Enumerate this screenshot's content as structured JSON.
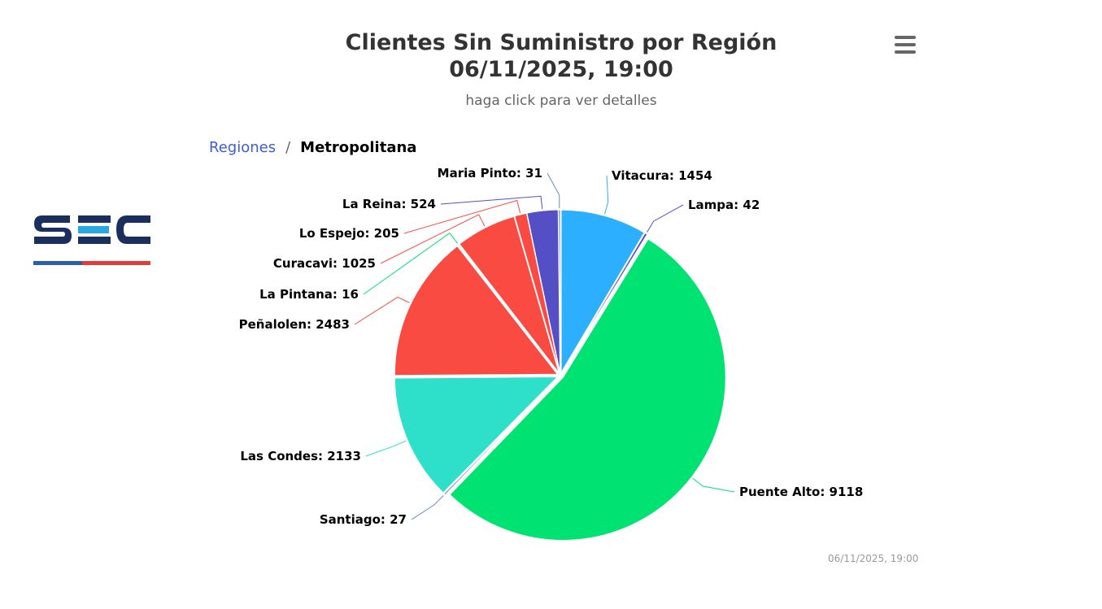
{
  "header": {
    "title_line1": "Clientes Sin Suministro por Región",
    "title_line2": "06/11/2025, 19:00",
    "subtitle": "haga click para ver detalles"
  },
  "breadcrumb": {
    "parent": "Regiones",
    "separator": "/",
    "current": "Metropolitana"
  },
  "menu": {
    "icon": "hamburger-menu-icon"
  },
  "logo": {
    "text": "SEC",
    "colors": {
      "dark": "#1b2f5e",
      "accent": "#29a8e0",
      "red": "#e03c3c",
      "blue": "#2c5fa8"
    }
  },
  "credits": "06/11/2025, 19:00",
  "chart_data": {
    "type": "pie",
    "title": "Clientes Sin Suministro por Región 06/11/2025, 19:00",
    "subtitle": "haga click para ver detalles",
    "slices": [
      {
        "name": "Vitacura",
        "value": 1454,
        "color": "#2caffe"
      },
      {
        "name": "Lampa",
        "value": 42,
        "color": "#544fc5"
      },
      {
        "name": "Puente Alto",
        "value": 9118,
        "color": "#00e272"
      },
      {
        "name": "Santiago",
        "value": 27,
        "color": "#6b8abc"
      },
      {
        "name": "Las Condes",
        "value": 2133,
        "color": "#2ee0ca"
      },
      {
        "name": "Peñalolen",
        "value": 2483,
        "color": "#fa4b42"
      },
      {
        "name": "La Pintana",
        "value": 16,
        "color": "#00e272"
      },
      {
        "name": "Curacavi",
        "value": 1025,
        "color": "#fa4b42"
      },
      {
        "name": "Lo Espejo",
        "value": 205,
        "color": "#fa4b42"
      },
      {
        "name": "La Reina",
        "value": 524,
        "color": "#544fc5"
      },
      {
        "name": "Maria Pinto",
        "value": 31,
        "color": "#6b8abc"
      }
    ]
  }
}
